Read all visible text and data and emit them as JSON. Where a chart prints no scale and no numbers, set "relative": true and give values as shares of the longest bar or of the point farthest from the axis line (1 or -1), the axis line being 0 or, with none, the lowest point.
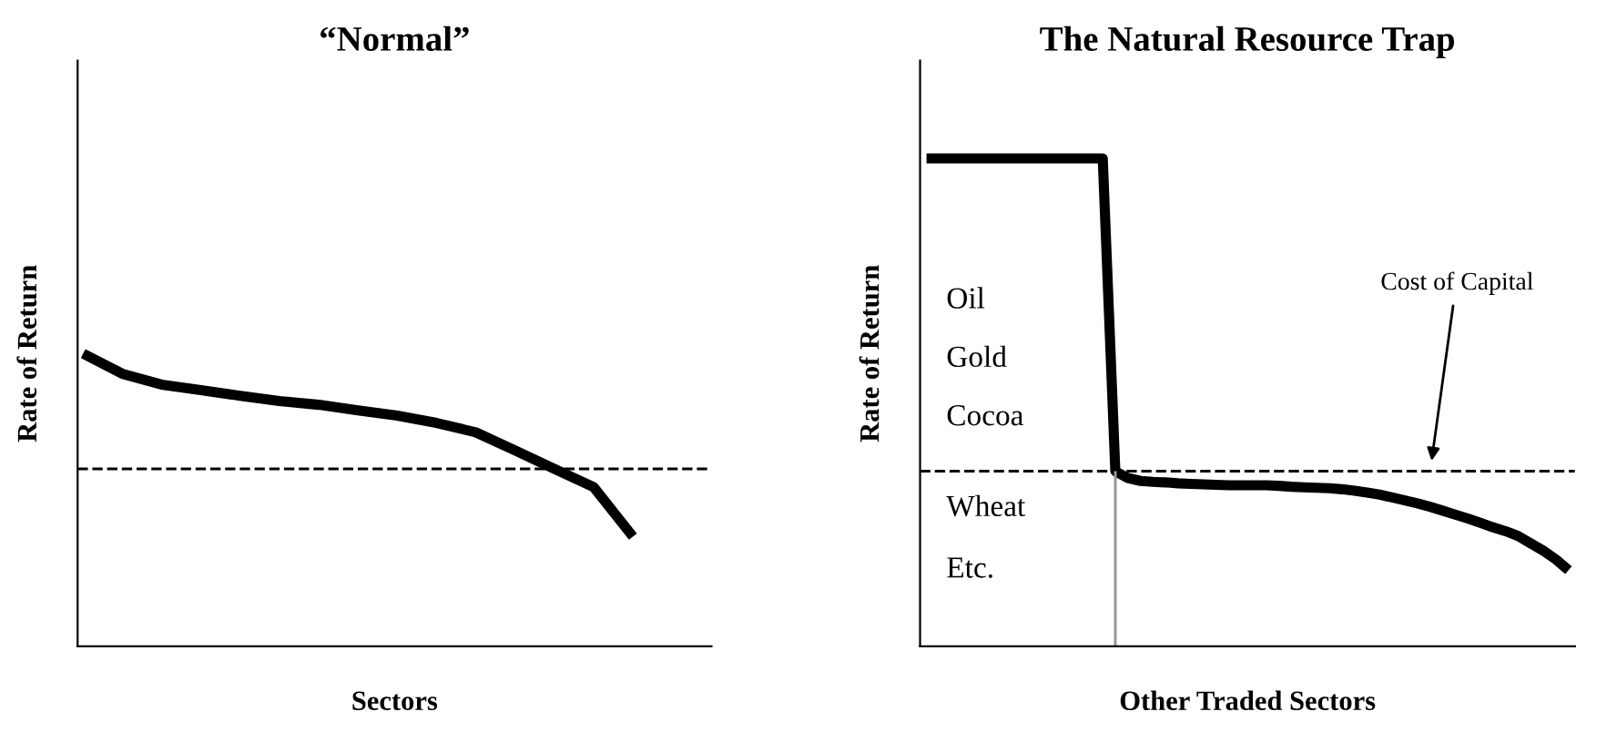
{
  "chart_data": [
    {
      "type": "line",
      "title": "“Normal”",
      "xlabel": "Sectors",
      "ylabel": "Rate of Return",
      "relative": true,
      "color": "#000000",
      "categories": [
        null,
        null,
        null,
        null,
        null,
        null,
        null,
        null,
        null,
        null,
        null,
        null,
        null,
        null,
        null,
        null,
        null
      ],
      "values": [
        1,
        0.931,
        0.894,
        0.875,
        0.856,
        0.838,
        0.825,
        0.806,
        0.788,
        0.763,
        0.731,
        0.669,
        0.606,
        0.544,
        0.375,
        null,
        null
      ],
      "ref_lines": [
        {
          "axis": "y",
          "value": 0.606,
          "line_style": "dashed",
          "color": "#000000"
        }
      ]
    },
    {
      "type": "line",
      "title": "The Natural Resource Trap",
      "xlabel": "Other Traded Sectors",
      "ylabel": "Rate of Return",
      "relative": true,
      "categories": [
        null,
        null,
        null,
        null,
        null,
        null,
        null,
        null,
        null,
        null,
        null,
        null,
        null,
        null,
        null,
        null,
        null,
        null,
        null,
        null,
        null,
        null,
        null,
        null,
        null,
        null,
        null,
        null,
        null,
        null,
        null,
        null,
        null,
        null,
        null,
        null,
        null,
        null,
        null,
        null,
        null,
        null,
        null,
        null,
        null,
        null,
        null,
        null,
        null,
        null,
        null,
        null
      ],
      "color": "#000000",
      "values": [
        1,
        1,
        1,
        1,
        1,
        1,
        1,
        1,
        1,
        1,
        1,
        1,
        1,
        1,
        1,
        0.359,
        0.345,
        0.339,
        0.337,
        0.336,
        0.334,
        0.333,
        0.332,
        0.331,
        0.33,
        0.33,
        0.33,
        0.33,
        0.329,
        0.327,
        0.326,
        0.325,
        0.324,
        0.322,
        0.319,
        0.315,
        0.311,
        0.305,
        0.299,
        0.293,
        0.286,
        0.278,
        0.27,
        0.262,
        0.253,
        0.244,
        0.236,
        0.226,
        0.211,
        0.196,
        0.178,
        0.156
      ],
      "ref_lines": [
        {
          "axis": "y",
          "value": 0.359,
          "line_style": "dashed",
          "color": "#000000"
        }
      ],
      "annotations": [
        "Oil",
        "Gold",
        "Cocoa",
        "Wheat",
        "Etc.",
        "Cost of Capital"
      ]
    }
  ]
}
